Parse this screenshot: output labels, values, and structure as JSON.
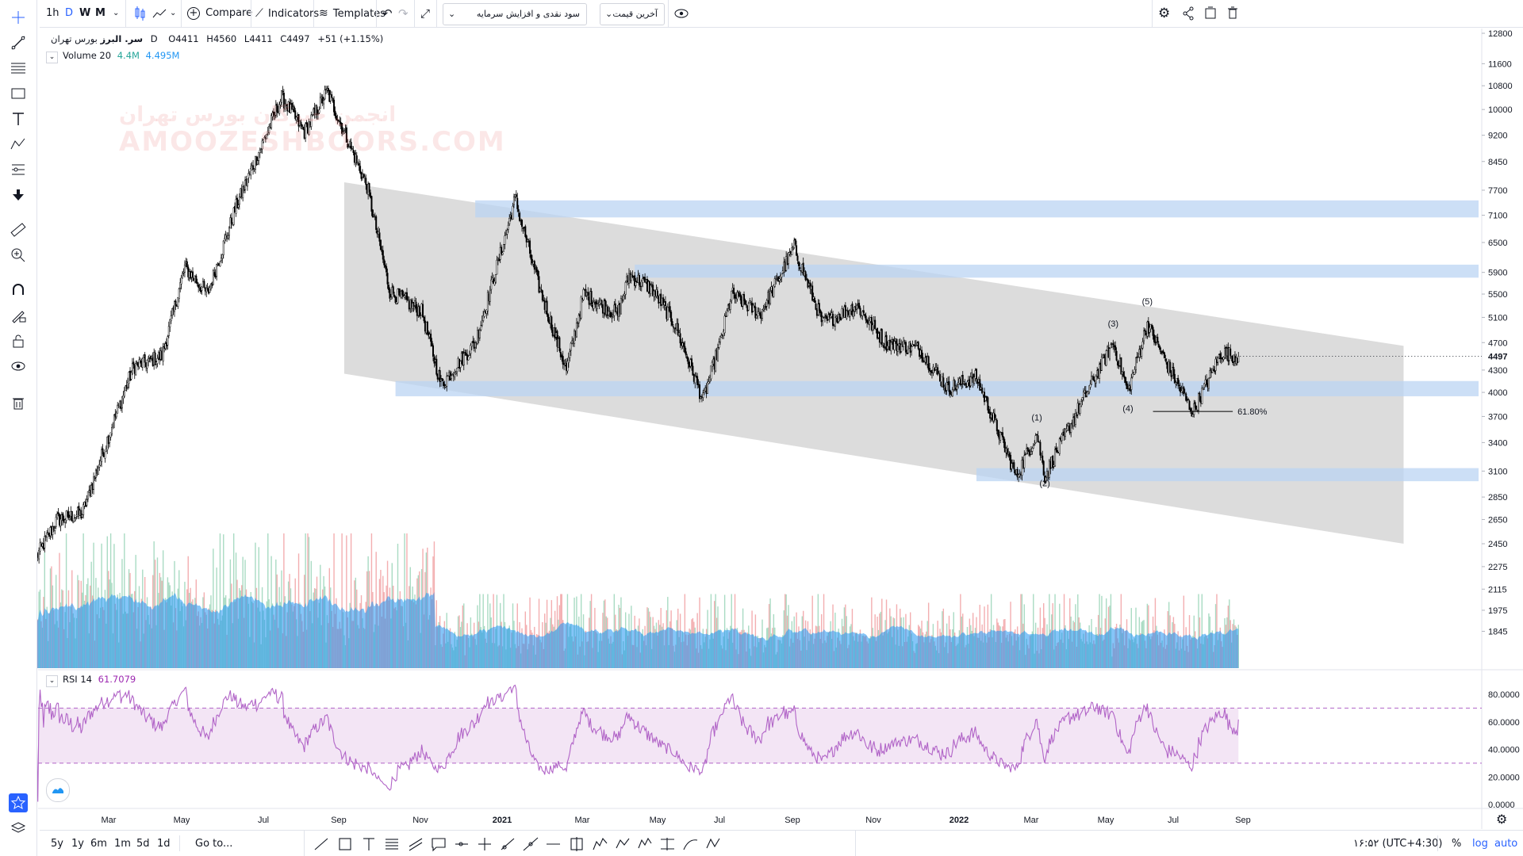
{
  "toolbar": {
    "intervals": [
      "1h",
      "D",
      "W",
      "M"
    ],
    "active_interval": "D",
    "compare_label": "Compare",
    "indicators_label": "Indicators",
    "templates_label": "Templates",
    "field_select": "سود نقدی و افزایش سرمایه",
    "price_type_select": "آخرین قیمت"
  },
  "legend": {
    "symbol": "سر. البرز",
    "exchange": "بورس تهران",
    "interval": "D",
    "o_label": "O",
    "o": "4411",
    "h_label": "H",
    "h": "4560",
    "l_label": "L",
    "l": "4411",
    "c_label": "C",
    "c": "4497",
    "change": "+51 (+1.15%)",
    "volume_label": "Volume 20",
    "volume_value": "4.4M",
    "volume_ma": "4.495M",
    "rsi_label": "RSI 14",
    "rsi_value": "61.7079"
  },
  "watermark": {
    "line1": "انجمن خبرگان بورس تهران",
    "line2": "AMOOZESHBOORS.COM"
  },
  "bottom_bar": {
    "ranges": [
      "5y",
      "1y",
      "6m",
      "1m",
      "5d",
      "1d"
    ],
    "goto": "Go to...",
    "clock": "۱۶:۵۲ (UTC+4:30)",
    "percent": "%",
    "log": "log",
    "auto": "auto"
  },
  "colors": {
    "up": "#ffffff",
    "down": "#000000",
    "candle_border": "#000000",
    "volume_up": "#a9dbc3",
    "volume_down": "#f3aeb0",
    "volume_ma_area": "#2196f3",
    "rsi_line": "#b164c7",
    "rsi_band": "#f3e5f5",
    "channel": "#d6d6d6",
    "zones": "#bbd4f3",
    "accent": "#2962ff"
  },
  "chart_data": {
    "type": "candlestick",
    "price_scale": "log",
    "price_axis_ticks": [
      12800,
      11600,
      10800,
      10000,
      9200,
      8450,
      7700,
      7100,
      6500,
      5900,
      5500,
      5100,
      4700,
      4300,
      4000,
      3700,
      3400,
      3100,
      2850,
      2650,
      2450,
      2275,
      2115,
      1975,
      1845
    ],
    "last_price_label": "4497",
    "time_axis_labels": [
      "Mar",
      "May",
      "Jul",
      "Sep",
      "Nov",
      "2021",
      "Mar",
      "May",
      "Jul",
      "Sep",
      "Nov",
      "2022",
      "Mar",
      "May",
      "Jul",
      "Sep"
    ],
    "rsi_axis_ticks": [
      "80.0000",
      "60.0000",
      "40.0000",
      "20.0000",
      "0.0000"
    ],
    "price_anchors": [
      {
        "d": 0,
        "p": 2350
      },
      {
        "d": 18,
        "p": 2650
      },
      {
        "d": 40,
        "p": 2700
      },
      {
        "d": 65,
        "p": 3550
      },
      {
        "d": 85,
        "p": 4350
      },
      {
        "d": 110,
        "p": 4500
      },
      {
        "d": 130,
        "p": 6000
      },
      {
        "d": 150,
        "p": 5500
      },
      {
        "d": 175,
        "p": 7300
      },
      {
        "d": 200,
        "p": 9100
      },
      {
        "d": 215,
        "p": 10400
      },
      {
        "d": 235,
        "p": 9300
      },
      {
        "d": 255,
        "p": 10600
      },
      {
        "d": 290,
        "p": 7800
      },
      {
        "d": 310,
        "p": 5550
      },
      {
        "d": 338,
        "p": 5200
      },
      {
        "d": 355,
        "p": 4100
      },
      {
        "d": 385,
        "p": 4700
      },
      {
        "d": 410,
        "p": 6500
      },
      {
        "d": 420,
        "p": 7500
      },
      {
        "d": 440,
        "p": 5700
      },
      {
        "d": 465,
        "p": 4300
      },
      {
        "d": 480,
        "p": 5500
      },
      {
        "d": 510,
        "p": 5150
      },
      {
        "d": 520,
        "p": 5850
      },
      {
        "d": 540,
        "p": 5600
      },
      {
        "d": 560,
        "p": 5000
      },
      {
        "d": 585,
        "p": 3900
      },
      {
        "d": 600,
        "p": 4700
      },
      {
        "d": 610,
        "p": 5500
      },
      {
        "d": 635,
        "p": 5150
      },
      {
        "d": 665,
        "p": 6400
      },
      {
        "d": 690,
        "p": 5000
      },
      {
        "d": 720,
        "p": 5300
      },
      {
        "d": 745,
        "p": 4700
      },
      {
        "d": 775,
        "p": 4600
      },
      {
        "d": 800,
        "p": 4050
      },
      {
        "d": 825,
        "p": 4200
      },
      {
        "d": 860,
        "p": 3050
      },
      {
        "d": 878,
        "p": 3500
      },
      {
        "d": 885,
        "p": 3050
      },
      {
        "d": 920,
        "p": 3950
      },
      {
        "d": 945,
        "p": 4700
      },
      {
        "d": 958,
        "p": 4000
      },
      {
        "d": 975,
        "p": 5000
      },
      {
        "d": 990,
        "p": 4450
      },
      {
        "d": 1015,
        "p": 3750
      },
      {
        "d": 1040,
        "p": 4550
      },
      {
        "d": 1055,
        "p": 4497
      }
    ],
    "channel": {
      "upper": [
        [
          270,
          7900
        ],
        [
          1200,
          4650
        ]
      ],
      "lower": [
        [
          270,
          4250
        ],
        [
          1200,
          2450
        ]
      ]
    },
    "zones": [
      {
        "from": 385,
        "to": 1350,
        "low": 7050,
        "high": 7450
      },
      {
        "from": 525,
        "to": 1350,
        "low": 5800,
        "high": 6050
      },
      {
        "from": 315,
        "to": 1350,
        "low": 3950,
        "high": 4150
      },
      {
        "from": 825,
        "to": 1350,
        "low": 3000,
        "high": 3130
      }
    ],
    "wave_labels": [
      {
        "text": "(1)",
        "d": 878,
        "p": 3650
      },
      {
        "text": "(2)",
        "d": 885,
        "p": 2950
      },
      {
        "text": "(3)",
        "d": 945,
        "p": 4950
      },
      {
        "text": "(4)",
        "d": 958,
        "p": 3760
      },
      {
        "text": "(5)",
        "d": 975,
        "p": 5320
      }
    ],
    "fib_level": {
      "label": "61.80%",
      "from": 980,
      "to": 1050,
      "price": 3760
    },
    "rsi_bounds": [
      30,
      70
    ],
    "rsi_last": 61.7079
  }
}
